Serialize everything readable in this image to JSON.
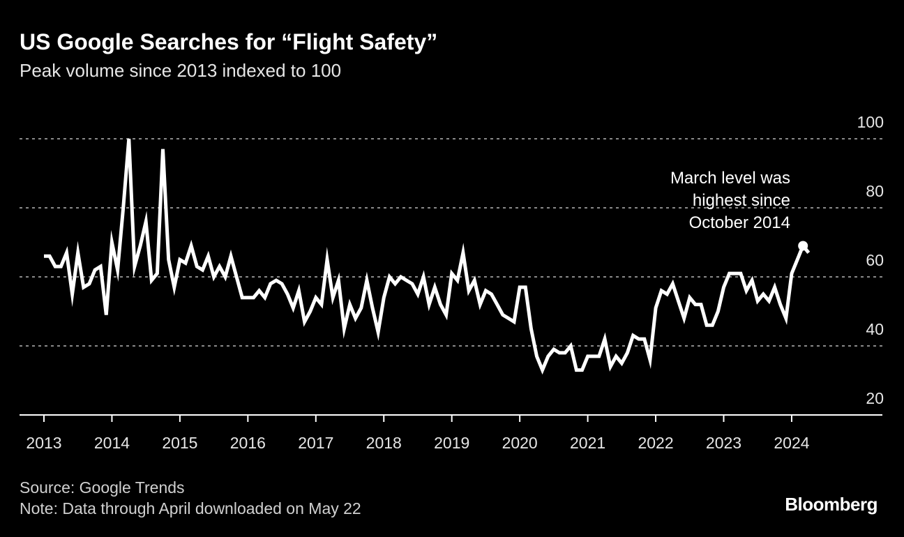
{
  "chart_data": {
    "type": "line",
    "title": "US Google Searches for “Flight Safety”",
    "subtitle": "Peak volume since 2013 indexed to 100",
    "xlabel": "",
    "ylabel": "",
    "ylim": [
      20,
      100
    ],
    "yticks": [
      20,
      40,
      60,
      80,
      100
    ],
    "ytick_labels": [
      "20",
      "40",
      "60",
      "80",
      "100"
    ],
    "xticks": [
      "2013",
      "2014",
      "2015",
      "2016",
      "2017",
      "2018",
      "2019",
      "2020",
      "2021",
      "2022",
      "2023",
      "2024"
    ],
    "x_start": "2013-01",
    "x_frequency": "monthly",
    "grid": true,
    "series": [
      {
        "name": "Flight Safety searches",
        "color": "#ffffff",
        "values": [
          66,
          66,
          63,
          63,
          67,
          55,
          67,
          57,
          58,
          62,
          63,
          49,
          70,
          62,
          80,
          100,
          63,
          69,
          76,
          59,
          61,
          97,
          65,
          57,
          65,
          64,
          69,
          63,
          62,
          66,
          60,
          63,
          60,
          66,
          60,
          54,
          54,
          54,
          56,
          54,
          58,
          59,
          58,
          55,
          51,
          56,
          47,
          50,
          54,
          52,
          65,
          54,
          59,
          45,
          52,
          48,
          51,
          59,
          51,
          44,
          54,
          60,
          58,
          60,
          59,
          58,
          55,
          60,
          52,
          57,
          52,
          49,
          61,
          59,
          67,
          56,
          59,
          52,
          56,
          55,
          52,
          49,
          48,
          47,
          57,
          57,
          45,
          37,
          33,
          37,
          39,
          38,
          38,
          40,
          33,
          33,
          37,
          37,
          37,
          42,
          34,
          37,
          35,
          38,
          43,
          42,
          42,
          36,
          51,
          56,
          55,
          58,
          53,
          48,
          54,
          52,
          52,
          46,
          46,
          50,
          57,
          61,
          61,
          61,
          56,
          59,
          53,
          55,
          53,
          57,
          52,
          48,
          61,
          65,
          69,
          67
        ]
      }
    ],
    "annotations": [
      {
        "text_lines": [
          "March level was",
          "highest since",
          "October 2014"
        ],
        "point": "2024-03"
      }
    ]
  },
  "footer": {
    "source": "Source: Google Trends",
    "note": "Note: Data through April downloaded on May 22",
    "brand": "Bloomberg"
  }
}
